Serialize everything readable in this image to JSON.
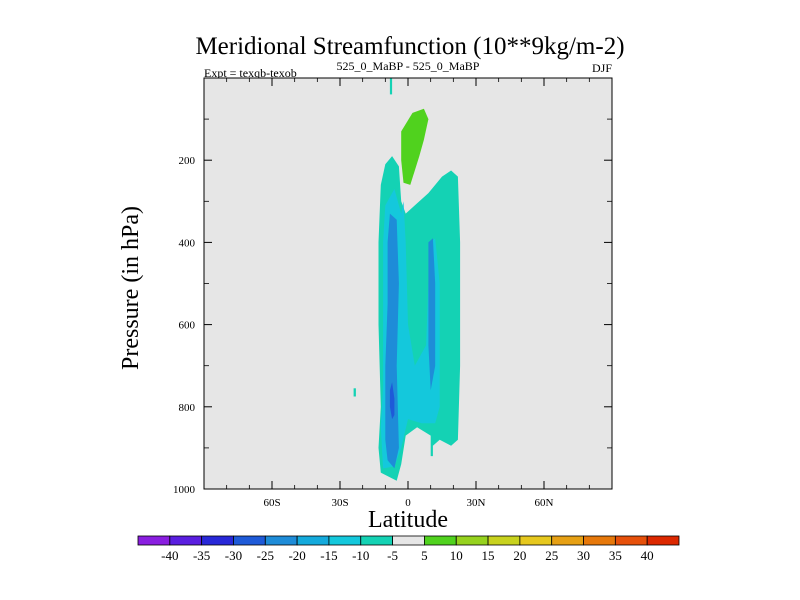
{
  "chart_data": {
    "type": "heatmap",
    "title": "Meridional Streamfunction (10**9kg/m-2)",
    "subtitle_left": "Expt = texqb-texob",
    "subtitle_center": "525_0_MaBP - 525_0_MaBP",
    "subtitle_right": "DJF",
    "xlabel": "Latitude",
    "ylabel": "Pressure (in hPa)",
    "xlim": [
      -90,
      90
    ],
    "ylim": [
      1000,
      0
    ],
    "x_ticks": [
      {
        "value": -60,
        "label": "60S"
      },
      {
        "value": -30,
        "label": "30S"
      },
      {
        "value": 0,
        "label": "0"
      },
      {
        "value": 30,
        "label": "30N"
      },
      {
        "value": 60,
        "label": "60N"
      }
    ],
    "y_ticks": [
      {
        "value": 200,
        "label": "200"
      },
      {
        "value": 400,
        "label": "400"
      },
      {
        "value": 600,
        "label": "600"
      },
      {
        "value": 800,
        "label": "800"
      },
      {
        "value": 1000,
        "label": "1000"
      }
    ],
    "background_color": "#e6e6e6",
    "colorbar": {
      "labels": [
        "-40",
        "-35",
        "-30",
        "-25",
        "-20",
        "-15",
        "-10",
        "-5",
        "5",
        "10",
        "15",
        "20",
        "25",
        "30",
        "35",
        "40"
      ],
      "colors": [
        "#8a1ee0",
        "#5a1ee0",
        "#2828d8",
        "#1e5ad8",
        "#1e8cd8",
        "#14aadc",
        "#14c8dc",
        "#14d2b4",
        "#e6e6e6",
        "#50d21e",
        "#96d21e",
        "#c8d21e",
        "#e6c81e",
        "#e6a014",
        "#e6780a",
        "#e6500a",
        "#dc2800"
      ]
    },
    "regions": [
      {
        "level": "-10 to -5",
        "color": "#14d2b4",
        "outline": [
          [
            -5,
            980
          ],
          [
            -12,
            960
          ],
          [
            -13,
            900
          ],
          [
            -12,
            800
          ],
          [
            -13,
            600
          ],
          [
            -13,
            400
          ],
          [
            -12,
            260
          ],
          [
            -10,
            210
          ],
          [
            -7,
            190
          ],
          [
            -4,
            215
          ],
          [
            -3,
            300
          ],
          [
            -1,
            330
          ],
          [
            3,
            310
          ],
          [
            9,
            280
          ],
          [
            15,
            240
          ],
          [
            19,
            225
          ],
          [
            22,
            240
          ],
          [
            23,
            400
          ],
          [
            23,
            700
          ],
          [
            22,
            880
          ],
          [
            19,
            895
          ],
          [
            14,
            880
          ],
          [
            11,
            895
          ],
          [
            11,
            920
          ],
          [
            10,
            920
          ],
          [
            10,
            870
          ],
          [
            4,
            850
          ],
          [
            -1,
            870
          ],
          [
            -3,
            940
          ]
        ]
      },
      {
        "level": "-15 to -10",
        "color": "#14c8dc",
        "outline": [
          [
            -11,
            950
          ],
          [
            -12,
            850
          ],
          [
            -11,
            750
          ],
          [
            -11,
            550
          ],
          [
            -11,
            400
          ],
          [
            -10,
            310
          ],
          [
            -6,
            270
          ],
          [
            -3,
            330
          ],
          [
            -2,
            300
          ],
          [
            -1,
            400
          ],
          [
            0,
            600
          ],
          [
            3,
            700
          ],
          [
            8,
            650
          ],
          [
            9,
            500
          ],
          [
            10,
            400
          ],
          [
            12,
            390
          ],
          [
            14,
            500
          ],
          [
            14,
            800
          ],
          [
            12,
            840
          ],
          [
            6,
            840
          ],
          [
            0,
            830
          ],
          [
            -3,
            900
          ],
          [
            -6,
            945
          ]
        ]
      },
      {
        "level": "-20 to -15",
        "color": "#1e8cd8",
        "outline": [
          [
            -9,
            930
          ],
          [
            -10,
            880
          ],
          [
            -10,
            700
          ],
          [
            -9,
            550
          ],
          [
            -9,
            400
          ],
          [
            -8,
            330
          ],
          [
            -5,
            345
          ],
          [
            -4,
            500
          ],
          [
            -5,
            700
          ],
          [
            -4,
            900
          ],
          [
            -6,
            950
          ]
        ]
      },
      {
        "level": "-20 to -15",
        "color": "#1e8cd8",
        "outline": [
          [
            9,
            400
          ],
          [
            11,
            390
          ],
          [
            12,
            500
          ],
          [
            12,
            700
          ],
          [
            10,
            760
          ],
          [
            9,
            650
          ]
        ]
      },
      {
        "level": "-25 to -20",
        "color": "#1e5ad8",
        "outline": [
          [
            -8,
            800
          ],
          [
            -8,
            760
          ],
          [
            -7,
            740
          ],
          [
            -6,
            780
          ],
          [
            -6,
            820
          ],
          [
            -7,
            830
          ]
        ]
      },
      {
        "level": "-10 to -5",
        "color": "#14d2b4",
        "outline": [
          [
            -8,
            0
          ],
          [
            -7,
            0
          ],
          [
            -7,
            40
          ],
          [
            -8,
            40
          ]
        ]
      },
      {
        "level": "-10 to -5",
        "color": "#14d2b4",
        "outline": [
          [
            -24,
            755
          ],
          [
            -23,
            755
          ],
          [
            -23,
            775
          ],
          [
            -24,
            775
          ]
        ]
      },
      {
        "level": "5 to 10",
        "color": "#50d21e",
        "outline": [
          [
            -3,
            130
          ],
          [
            2,
            85
          ],
          [
            7,
            75
          ],
          [
            9,
            100
          ],
          [
            7,
            150
          ],
          [
            5,
            190
          ],
          [
            1,
            260
          ],
          [
            -2,
            255
          ],
          [
            -3,
            200
          ]
        ]
      }
    ]
  }
}
